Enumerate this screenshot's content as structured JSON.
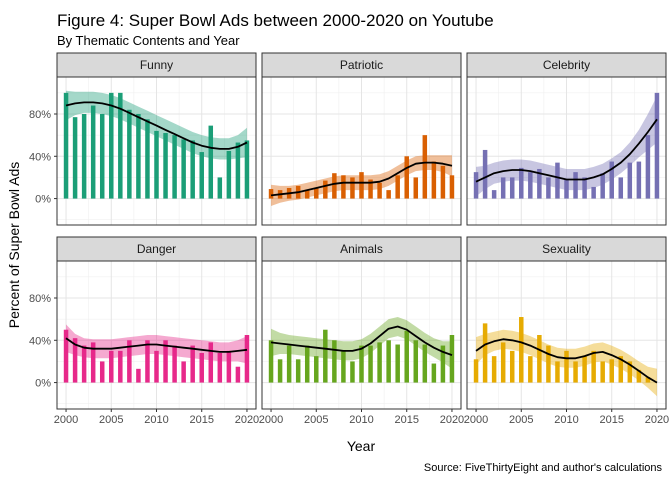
{
  "title": "Figure 4: Super Bowl Ads between 2000-2020 on Youtube",
  "subtitle": "By Thematic Contents and Year",
  "caption": "Source: FiveThirtyEight and author's calculations",
  "chart_data": {
    "type": "bar",
    "xlabel": "Year",
    "ylabel": "Percent of Super Bowl Ads",
    "x": [
      2000,
      2001,
      2002,
      2003,
      2004,
      2005,
      2006,
      2007,
      2008,
      2009,
      2010,
      2011,
      2012,
      2013,
      2014,
      2015,
      2016,
      2017,
      2018,
      2019,
      2020
    ],
    "x_ticks": [
      2000,
      2005,
      2010,
      2015,
      2020
    ],
    "y_ticks": [
      0,
      40,
      80
    ],
    "y_tick_labels": [
      "0%",
      "40%",
      "80%"
    ],
    "ylim": [
      -25,
      115
    ],
    "xlim": [
      1999,
      2021
    ],
    "overlay": "smoothed trend line with confidence band",
    "grid": true,
    "panels": [
      {
        "label": "Funny",
        "color": "#1b9e77",
        "values": [
          100,
          77,
          80,
          88,
          80,
          100,
          100,
          84,
          80,
          75,
          64,
          62,
          60,
          56,
          55,
          44,
          69,
          20,
          45,
          53,
          55
        ],
        "smooth": [
          88,
          90,
          91,
          91,
          90,
          88,
          85,
          81,
          77,
          73,
          69,
          65,
          61,
          57,
          53,
          50,
          48,
          47,
          47,
          49,
          53
        ],
        "band_half": [
          14,
          11,
          10,
          10,
          10,
          10,
          10,
          10,
          10,
          10,
          10,
          10,
          10,
          10,
          10,
          10,
          10,
          10,
          10,
          11,
          14
        ]
      },
      {
        "label": "Patriotic",
        "color": "#d95f02",
        "values": [
          9,
          8,
          10,
          12,
          8,
          10,
          17,
          24,
          22,
          20,
          25,
          18,
          15,
          8,
          22,
          40,
          20,
          60,
          35,
          31,
          22
        ],
        "smooth": [
          3,
          4,
          5,
          6,
          8,
          10,
          12,
          14,
          15,
          15,
          15,
          15,
          16,
          19,
          24,
          29,
          33,
          34,
          34,
          33,
          31
        ],
        "band_half": [
          10,
          8,
          7,
          7,
          7,
          7,
          7,
          7,
          7,
          7,
          7,
          7,
          7,
          7,
          7,
          7,
          7,
          7,
          7,
          8,
          10
        ]
      },
      {
        "label": "Celebrity",
        "color": "#7570b3",
        "values": [
          25,
          46,
          8,
          20,
          20,
          29,
          25,
          28,
          20,
          34,
          18,
          25,
          20,
          11,
          24,
          35,
          20,
          34,
          35,
          60,
          100
        ],
        "smooth": [
          16,
          20,
          24,
          26,
          27,
          27,
          26,
          24,
          22,
          20,
          18,
          18,
          18,
          20,
          23,
          28,
          34,
          42,
          52,
          63,
          75
        ],
        "band_half": [
          14,
          11,
          10,
          10,
          10,
          10,
          10,
          10,
          10,
          10,
          10,
          10,
          10,
          10,
          10,
          10,
          10,
          11,
          13,
          17,
          22
        ]
      },
      {
        "label": "Danger",
        "color": "#e7298a",
        "values": [
          50,
          42,
          35,
          38,
          20,
          30,
          30,
          40,
          13,
          40,
          30,
          40,
          35,
          20,
          35,
          28,
          38,
          28,
          30,
          15,
          45
        ],
        "smooth": [
          42,
          36,
          33,
          32,
          32,
          32,
          33,
          34,
          35,
          36,
          36,
          35,
          34,
          33,
          32,
          31,
          30,
          29,
          29,
          30,
          31
        ],
        "band_half": [
          13,
          10,
          9,
          9,
          9,
          9,
          9,
          9,
          9,
          9,
          9,
          9,
          9,
          9,
          9,
          9,
          9,
          9,
          9,
          10,
          13
        ]
      },
      {
        "label": "Animals",
        "color": "#66a61e",
        "values": [
          40,
          22,
          35,
          22,
          35,
          25,
          50,
          40,
          30,
          20,
          35,
          35,
          38,
          40,
          36,
          49,
          40,
          36,
          18,
          35,
          45
        ],
        "smooth": [
          38,
          37,
          36,
          35,
          34,
          33,
          32,
          31,
          30,
          30,
          32,
          37,
          44,
          51,
          53,
          50,
          44,
          38,
          33,
          29,
          26
        ],
        "band_half": [
          13,
          10,
          9,
          9,
          9,
          9,
          9,
          9,
          9,
          9,
          9,
          9,
          9,
          9,
          9,
          9,
          9,
          9,
          9,
          10,
          13
        ]
      },
      {
        "label": "Sexuality",
        "color": "#e6ab02",
        "values": [
          22,
          56,
          25,
          38,
          30,
          62,
          25,
          45,
          35,
          20,
          30,
          20,
          25,
          30,
          20,
          22,
          25,
          20,
          12,
          5,
          0
        ],
        "smooth": [
          30,
          36,
          39,
          41,
          40,
          38,
          35,
          31,
          27,
          24,
          23,
          23,
          25,
          28,
          29,
          26,
          22,
          17,
          11,
          5,
          0
        ],
        "band_half": [
          13,
          10,
          9,
          9,
          9,
          9,
          9,
          9,
          9,
          9,
          9,
          9,
          9,
          9,
          9,
          9,
          9,
          9,
          9,
          10,
          13
        ]
      }
    ]
  }
}
